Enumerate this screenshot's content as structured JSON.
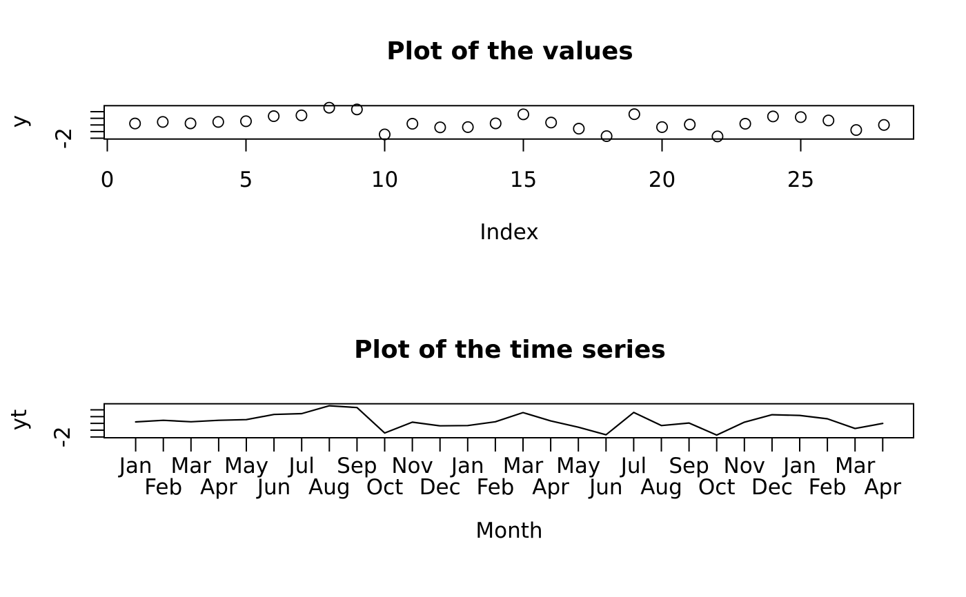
{
  "figure": {
    "background_color": "#ffffff",
    "line_color": "#000000"
  },
  "chart_data": [
    {
      "type": "scatter",
      "title": "Plot of the values",
      "xlabel": "Index",
      "ylabel": "y",
      "marker": "open-circle",
      "x": [
        1,
        2,
        3,
        4,
        5,
        6,
        7,
        8,
        9,
        10,
        11,
        12,
        13,
        14,
        15,
        16,
        17,
        18,
        19,
        20,
        21,
        22,
        23,
        24,
        25,
        26,
        27,
        28
      ],
      "values": [
        -0.89,
        -0.77,
        -0.88,
        -0.77,
        -0.72,
        -0.34,
        -0.28,
        0.3,
        0.17,
        -1.71,
        -0.91,
        -1.18,
        -1.16,
        -0.88,
        -0.2,
        -0.82,
        -1.28,
        -1.84,
        -0.19,
        -1.16,
        -0.97,
        -1.86,
        -0.91,
        -0.36,
        -0.41,
        -0.66,
        -1.38,
        -1.0
      ],
      "xlim": [
        -0.1,
        29.1
      ],
      "ylim": [
        -2.06,
        0.45
      ],
      "xticks": [
        0,
        5,
        10,
        15,
        20,
        25
      ],
      "xtick_labels": [
        "0",
        "5",
        "10",
        "15",
        "20",
        "25"
      ],
      "ytick_values": [
        0,
        -0.5,
        -1,
        -1.5,
        -2
      ],
      "ytick_labels": [
        "",
        "",
        "",
        "",
        "-2"
      ],
      "grid": "off",
      "legend": "none"
    },
    {
      "type": "line",
      "title": "Plot of the time series",
      "xlabel": "Month",
      "ylabel": "yt",
      "x": [
        1,
        2,
        3,
        4,
        5,
        6,
        7,
        8,
        9,
        10,
        11,
        12,
        13,
        14,
        15,
        16,
        17,
        18,
        19,
        20,
        21,
        22,
        23,
        24,
        25,
        26,
        27,
        28
      ],
      "values": [
        -0.89,
        -0.77,
        -0.88,
        -0.77,
        -0.72,
        -0.34,
        -0.28,
        0.3,
        0.17,
        -1.71,
        -0.91,
        -1.18,
        -1.16,
        -0.88,
        -0.2,
        -0.82,
        -1.28,
        -1.84,
        -0.19,
        -1.16,
        -0.97,
        -1.86,
        -0.91,
        -0.36,
        -0.41,
        -0.66,
        -1.38,
        -1.0
      ],
      "xlim": [
        0.9,
        28.1
      ],
      "ylim": [
        -2.06,
        0.45
      ],
      "xtick_labels": [
        "Jan",
        "Feb",
        "Mar",
        "Apr",
        "May",
        "Jun",
        "Jul",
        "Aug",
        "Sep",
        "Oct",
        "Nov",
        "Dec",
        "Jan",
        "Feb",
        "Mar",
        "Apr",
        "May",
        "Jun",
        "Jul",
        "Aug",
        "Sep",
        "Oct",
        "Nov",
        "Dec",
        "Jan",
        "Feb",
        "Mar",
        "Apr"
      ],
      "xtick_label_stagger": "odd-top-even-bottom",
      "ytick_values": [
        0,
        -0.5,
        -1,
        -1.5,
        -2
      ],
      "ytick_labels": [
        "",
        "",
        "",
        "",
        "-2"
      ],
      "grid": "off",
      "legend": "none"
    }
  ]
}
